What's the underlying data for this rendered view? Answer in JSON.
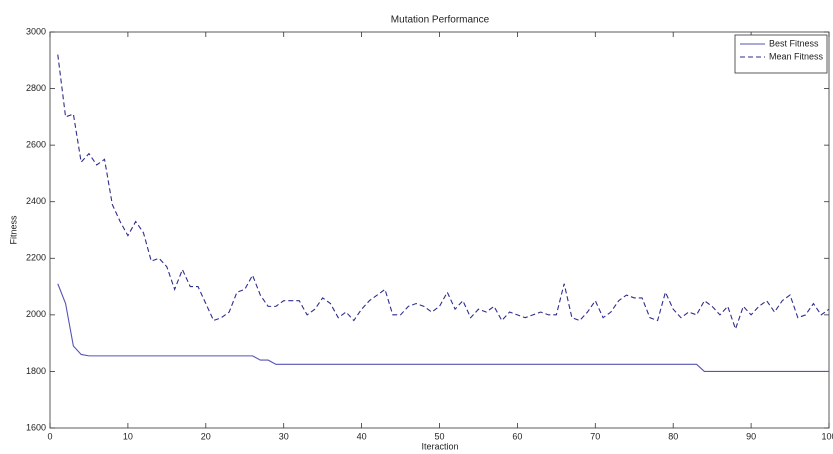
{
  "chart_data": {
    "type": "line",
    "title": "Mutation Performance",
    "x_label": "Iteraction",
    "y_label": "Fitness",
    "x": [
      1,
      2,
      3,
      4,
      5,
      6,
      7,
      8,
      9,
      10,
      11,
      12,
      13,
      14,
      15,
      16,
      17,
      18,
      19,
      20,
      21,
      22,
      23,
      24,
      25,
      26,
      27,
      28,
      29,
      30,
      31,
      32,
      33,
      34,
      35,
      36,
      37,
      38,
      39,
      40,
      41,
      42,
      43,
      44,
      45,
      46,
      47,
      48,
      49,
      50,
      51,
      52,
      53,
      54,
      55,
      56,
      57,
      58,
      59,
      60,
      61,
      62,
      63,
      64,
      65,
      66,
      67,
      68,
      69,
      70,
      71,
      72,
      73,
      74,
      75,
      76,
      77,
      78,
      79,
      80,
      81,
      82,
      83,
      84,
      85,
      86,
      87,
      88,
      89,
      90,
      91,
      92,
      93,
      94,
      95,
      96,
      97,
      98,
      99,
      100
    ],
    "series": [
      {
        "name": "Best Fitness",
        "color": "#5555b5",
        "style": "solid",
        "values": [
          2110,
          2040,
          1890,
          1860,
          1855,
          1855,
          1855,
          1855,
          1855,
          1855,
          1855,
          1855,
          1855,
          1855,
          1855,
          1855,
          1855,
          1855,
          1855,
          1855,
          1855,
          1855,
          1855,
          1855,
          1855,
          1855,
          1840,
          1840,
          1825,
          1825,
          1825,
          1825,
          1825,
          1825,
          1825,
          1825,
          1825,
          1825,
          1825,
          1825,
          1825,
          1825,
          1825,
          1825,
          1825,
          1825,
          1825,
          1825,
          1825,
          1825,
          1825,
          1825,
          1825,
          1825,
          1825,
          1825,
          1825,
          1825,
          1825,
          1825,
          1825,
          1825,
          1825,
          1825,
          1825,
          1825,
          1825,
          1825,
          1825,
          1825,
          1825,
          1825,
          1825,
          1825,
          1825,
          1825,
          1825,
          1825,
          1825,
          1825,
          1825,
          1825,
          1825,
          1800,
          1800,
          1800,
          1800,
          1800,
          1800,
          1800,
          1800,
          1800,
          1800,
          1800,
          1800,
          1800,
          1800,
          1800,
          1800,
          1800
        ]
      },
      {
        "name": "Mean Fitness",
        "color": "#2e2e8e",
        "style": "dashed",
        "values": [
          2920,
          2700,
          2710,
          2540,
          2570,
          2530,
          2550,
          2390,
          2330,
          2280,
          2330,
          2290,
          2190,
          2200,
          2170,
          2090,
          2160,
          2100,
          2100,
          2040,
          1980,
          1990,
          2010,
          2080,
          2090,
          2140,
          2070,
          2030,
          2030,
          2050,
          2050,
          2050,
          2000,
          2020,
          2060,
          2040,
          1990,
          2010,
          1980,
          2020,
          2050,
          2070,
          2090,
          2000,
          2000,
          2030,
          2040,
          2030,
          2010,
          2030,
          2080,
          2020,
          2050,
          1990,
          2020,
          2010,
          2030,
          1980,
          2010,
          2000,
          1990,
          2000,
          2010,
          2000,
          2000,
          2110,
          1990,
          1980,
          2010,
          2050,
          1990,
          2010,
          2050,
          2070,
          2060,
          2060,
          1990,
          1980,
          2080,
          2020,
          1990,
          2010,
          2000,
          2050,
          2030,
          2000,
          2030,
          1950,
          2030,
          2000,
          2030,
          2050,
          2010,
          2050,
          2070,
          1990,
          2000,
          2040,
          2000,
          2020
        ]
      }
    ],
    "xlim": [
      0,
      100
    ],
    "xticks": [
      0,
      10,
      20,
      30,
      40,
      50,
      60,
      70,
      80,
      90,
      100
    ],
    "ylim": [
      1600,
      3000
    ],
    "yticks": [
      1600,
      1800,
      2000,
      2200,
      2400,
      2600,
      2800,
      3000
    ],
    "legend": "top-right"
  }
}
